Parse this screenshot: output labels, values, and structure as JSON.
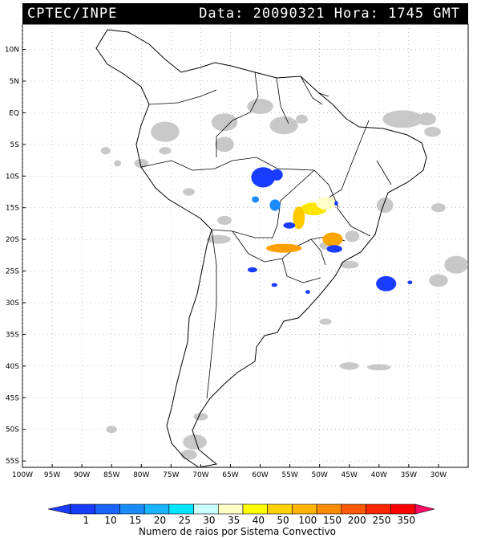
{
  "header": {
    "source": "CPTEC/INPE",
    "datetime": "Data: 20090321 Hora: 1745 GMT"
  },
  "map": {
    "region": "South America",
    "lon_range": [
      -100,
      -25
    ],
    "lat_range": [
      -56,
      14
    ],
    "lat_labels": [
      "10N",
      "5N",
      "EQ",
      "5S",
      "10S",
      "15S",
      "20S",
      "25S",
      "30S",
      "35S",
      "40S",
      "45S",
      "50S",
      "55S"
    ],
    "lon_labels": [
      "100W",
      "95W",
      "90W",
      "85W",
      "80W",
      "75W",
      "70W",
      "65W",
      "60W",
      "55W",
      "50W",
      "45W",
      "40W",
      "35W",
      "30W"
    ],
    "cloud_color": "#c8c8c8",
    "systems": [
      {
        "color": "#1a3cff",
        "lon": -59.5,
        "lat": -10.2,
        "rx": 2.0,
        "ry": 1.6
      },
      {
        "color": "#1a3cff",
        "lon": -57.2,
        "lat": -9.8,
        "rx": 1.0,
        "ry": 0.9
      },
      {
        "color": "#1a8cff",
        "lon": -57.5,
        "lat": -14.6,
        "rx": 0.9,
        "ry": 0.9
      },
      {
        "color": "#1a8cff",
        "lon": -60.8,
        "lat": -13.7,
        "rx": 0.6,
        "ry": 0.5
      },
      {
        "color": "#ffe600",
        "lon": -51.0,
        "lat": -15.2,
        "rx": 2.2,
        "ry": 1.0
      },
      {
        "color": "#ffffc8",
        "lon": -48.9,
        "lat": -14.3,
        "rx": 1.7,
        "ry": 1.0
      },
      {
        "color": "#ffc800",
        "lon": -53.5,
        "lat": -16.6,
        "rx": 1.0,
        "ry": 1.8
      },
      {
        "color": "#1a3cff",
        "lon": -55.1,
        "lat": -17.8,
        "rx": 1.0,
        "ry": 0.5
      },
      {
        "color": "#ffa500",
        "lon": -47.8,
        "lat": -20.0,
        "rx": 1.7,
        "ry": 1.1
      },
      {
        "color": "#1a3cff",
        "lon": -47.5,
        "lat": -21.5,
        "rx": 1.3,
        "ry": 0.6
      },
      {
        "color": "#ffa000",
        "lon": -56.0,
        "lat": -21.4,
        "rx": 3.0,
        "ry": 0.7
      },
      {
        "color": "#1a3cff",
        "lon": -61.3,
        "lat": -24.8,
        "rx": 0.8,
        "ry": 0.4
      },
      {
        "color": "#1a3cff",
        "lon": -38.8,
        "lat": -27.0,
        "rx": 1.7,
        "ry": 1.2
      },
      {
        "color": "#1a3cff",
        "lon": -57.6,
        "lat": -27.2,
        "rx": 0.5,
        "ry": 0.3
      },
      {
        "color": "#1a3cff",
        "lon": -52.0,
        "lat": -28.3,
        "rx": 0.4,
        "ry": 0.3
      },
      {
        "color": "#1a3cff",
        "lon": -47.2,
        "lat": -14.3,
        "rx": 0.3,
        "ry": 0.4
      },
      {
        "color": "#1a3cff",
        "lon": -34.8,
        "lat": -26.8,
        "rx": 0.4,
        "ry": 0.3
      }
    ]
  },
  "colorbar": {
    "labels": [
      "1",
      "10",
      "15",
      "20",
      "25",
      "30",
      "35",
      "40",
      "50",
      "100",
      "150",
      "200",
      "250",
      "350"
    ],
    "colors": [
      "#1a3cff",
      "#1a64ff",
      "#1a8cff",
      "#1ab4ff",
      "#00e6ff",
      "#c8ffff",
      "#ffffc8",
      "#ffff00",
      "#ffd200",
      "#ffb400",
      "#ff8c00",
      "#ff5a00",
      "#ff2800",
      "#ff0000"
    ],
    "caption": "Numero de raios por Sistema Convectivo"
  }
}
